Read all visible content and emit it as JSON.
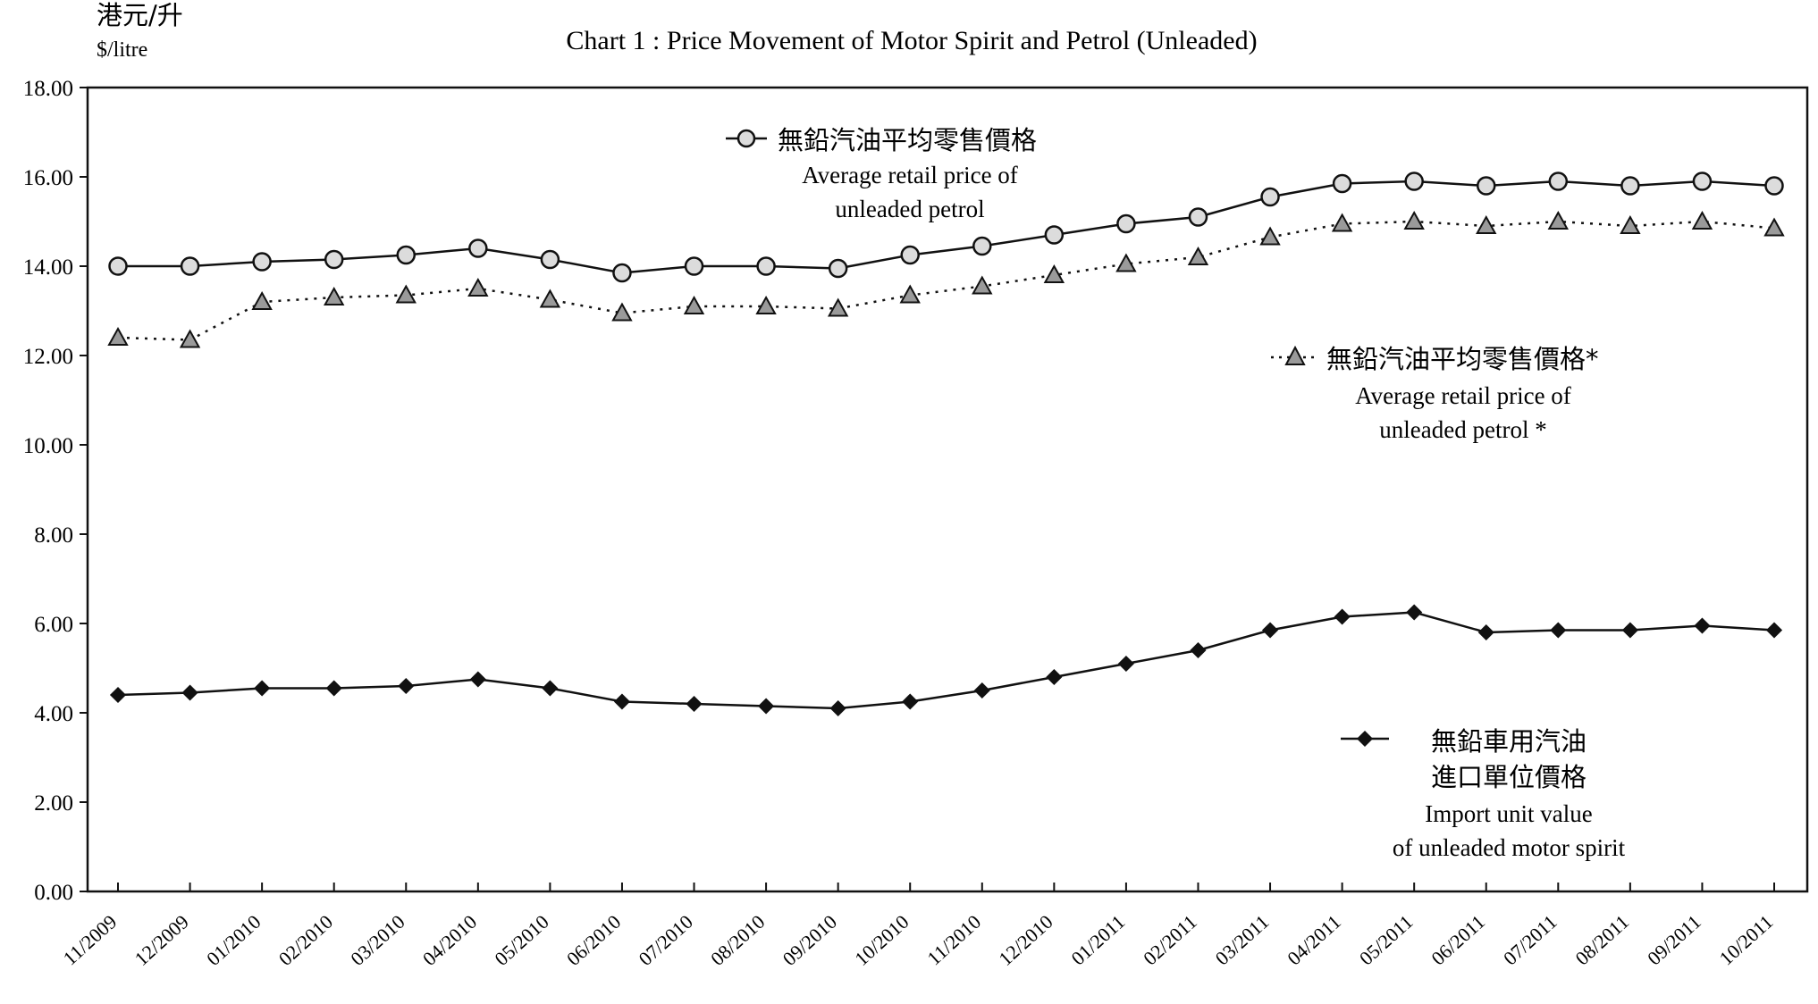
{
  "chart_data": {
    "type": "line",
    "title": "Chart 1 : Price Movement of Motor Spirit and Petrol (Unleaded)",
    "unit_label_cn": "港元/升",
    "unit_label_en": "$/litre",
    "ylim": [
      0,
      18
    ],
    "yticks": [
      "0.00",
      "2.00",
      "4.00",
      "6.00",
      "8.00",
      "10.00",
      "12.00",
      "14.00",
      "16.00",
      "18.00"
    ],
    "categories": [
      "11/2009",
      "12/2009",
      "01/2010",
      "02/2010",
      "03/2010",
      "04/2010",
      "05/2010",
      "06/2010",
      "07/2010",
      "08/2010",
      "09/2010",
      "10/2010",
      "11/2010",
      "12/2010",
      "01/2011",
      "02/2011",
      "03/2011",
      "04/2011",
      "05/2011",
      "06/2011",
      "07/2011",
      "08/2011",
      "09/2011",
      "10/2011"
    ],
    "grid": false,
    "series": [
      {
        "name_cn": "無鉛汽油平均零售價格",
        "name_en_1": "Average retail price of",
        "name_en_2": "unleaded petrol",
        "marker": "circle",
        "line": "solid",
        "values": [
          14.0,
          14.0,
          14.1,
          14.15,
          14.25,
          14.4,
          14.15,
          13.85,
          14.0,
          14.0,
          13.95,
          14.25,
          14.45,
          14.7,
          14.95,
          15.1,
          15.55,
          15.85,
          15.9,
          15.8,
          15.9,
          15.8,
          15.9,
          15.8
        ]
      },
      {
        "name_cn": "無鉛汽油平均零售價格*",
        "name_en_1": "Average retail price of",
        "name_en_2": "unleaded petrol *",
        "marker": "triangle",
        "line": "dotted",
        "values": [
          12.4,
          12.35,
          13.2,
          13.3,
          13.35,
          13.5,
          13.25,
          12.95,
          13.1,
          13.1,
          13.05,
          13.35,
          13.55,
          13.8,
          14.05,
          14.2,
          14.65,
          14.95,
          15.0,
          14.9,
          15.0,
          14.9,
          15.0,
          14.85
        ]
      },
      {
        "name_cn_1": "無鉛車用汽油",
        "name_cn_2": "進口單位價格",
        "name_en_1": "Import unit value",
        "name_en_2": "of unleaded motor spirit",
        "marker": "diamond",
        "line": "solid",
        "values": [
          4.4,
          4.45,
          4.55,
          4.55,
          4.6,
          4.75,
          4.55,
          4.25,
          4.2,
          4.15,
          4.1,
          4.25,
          4.5,
          4.8,
          5.1,
          5.4,
          5.85,
          6.15,
          6.25,
          5.8,
          5.85,
          5.85,
          5.95,
          5.85
        ]
      }
    ],
    "colors": {
      "axis": "#111111",
      "line": "#111111",
      "circle_fill": "#dcdcdc",
      "triangle_fill": "#9a9a9a"
    }
  }
}
